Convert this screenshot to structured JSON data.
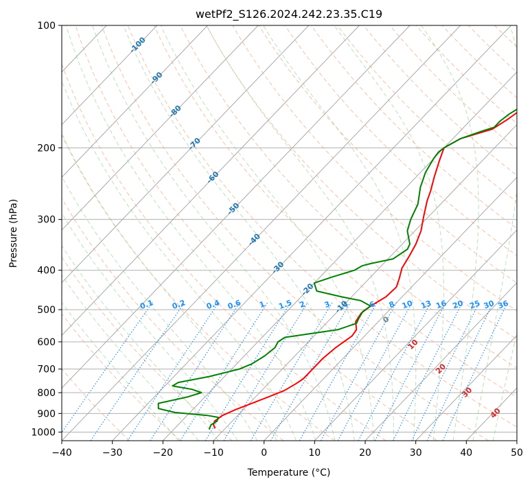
{
  "chart_data": {
    "type": "line",
    "title": "wetPf2_S126.2024.242.23.35.C19",
    "xlabel": "Temperature (°C)",
    "ylabel": "Pressure (hPa)",
    "xlim": [
      -40,
      50
    ],
    "ylim": [
      1050,
      100
    ],
    "y_scale": "log",
    "x_ticks": [
      -40,
      -30,
      -20,
      -10,
      0,
      10,
      20,
      30,
      40,
      50
    ],
    "y_ticks": [
      100,
      200,
      300,
      400,
      500,
      600,
      700,
      800,
      900,
      1000
    ],
    "grid": true,
    "isotherm_labels": [
      "-100",
      "-90",
      "-80",
      "-70",
      "-60",
      "-50",
      "-40",
      "-30",
      "-20",
      "-10"
    ],
    "mixing_ratio_labels": [
      "0.1",
      "0.2",
      "0.4",
      "0.6",
      "1",
      "1.5",
      "2",
      "3",
      "4",
      "6",
      "8",
      "10",
      "13",
      "16",
      "20",
      "25",
      "30",
      "36"
    ],
    "moist_adiabat_labels": [
      "0",
      "10",
      "20",
      "30",
      "40"
    ],
    "colors": {
      "temperature": "#ff0000",
      "dewpoint": "#008000",
      "isotherm_label": "#1f77b4",
      "mixing_ratio": "#1e90ff",
      "moist_label": "#d62728",
      "zero_label": "#808080"
    },
    "series": [
      {
        "color": "#ff0000",
        "points": [
          [
            -12.0,
            980
          ],
          [
            -13.0,
            960
          ],
          [
            -13.5,
            940
          ],
          [
            -13.0,
            910
          ],
          [
            -11.5,
            880
          ],
          [
            -9.5,
            850
          ],
          [
            -7.5,
            820
          ],
          [
            -5.5,
            790
          ],
          [
            -4.5,
            760
          ],
          [
            -4.0,
            740
          ],
          [
            -4.0,
            700
          ],
          [
            -4.0,
            660
          ],
          [
            -3.5,
            620
          ],
          [
            -2.5,
            580
          ],
          [
            -2.8,
            560
          ],
          [
            -4.5,
            535
          ],
          [
            -5.0,
            510
          ],
          [
            -4.5,
            490
          ],
          [
            -3.2,
            465
          ],
          [
            -3.0,
            440
          ],
          [
            -4.0,
            420
          ],
          [
            -5.5,
            395
          ],
          [
            -6.3,
            370
          ],
          [
            -7.3,
            345
          ],
          [
            -8.8,
            320
          ],
          [
            -11.0,
            295
          ],
          [
            -13.3,
            270
          ],
          [
            -14.5,
            255
          ],
          [
            -16.5,
            235
          ],
          [
            -18.5,
            215
          ],
          [
            -20.0,
            200
          ],
          [
            -18.5,
            190
          ],
          [
            -14.0,
            180
          ],
          [
            -12.8,
            170
          ],
          [
            -11.5,
            155
          ],
          [
            -10.5,
            140
          ],
          [
            -8.8,
            125
          ],
          [
            -7.2,
            112
          ],
          [
            -5.6,
            100
          ]
        ]
      },
      {
        "color": "#008000",
        "points": [
          [
            -13.0,
            985
          ],
          [
            -13.5,
            960
          ],
          [
            -13.0,
            940
          ],
          [
            -13.5,
            920
          ],
          [
            -16.0,
            910
          ],
          [
            -23.0,
            895
          ],
          [
            -27.0,
            875
          ],
          [
            -28.0,
            850
          ],
          [
            -23.5,
            820
          ],
          [
            -21.5,
            800
          ],
          [
            -24.0,
            785
          ],
          [
            -28.5,
            770
          ],
          [
            -28.0,
            755
          ],
          [
            -23.0,
            730
          ],
          [
            -18.5,
            700
          ],
          [
            -17.0,
            680
          ],
          [
            -16.0,
            650
          ],
          [
            -15.5,
            620
          ],
          [
            -16.0,
            600
          ],
          [
            -15.5,
            585
          ],
          [
            -12.0,
            575
          ],
          [
            -6.5,
            560
          ],
          [
            -4.0,
            540
          ],
          [
            -4.5,
            525
          ],
          [
            -5.0,
            505
          ],
          [
            -4.5,
            490
          ],
          [
            -7.5,
            475
          ],
          [
            -12.0,
            465
          ],
          [
            -18.0,
            450
          ],
          [
            -20.0,
            430
          ],
          [
            -17.5,
            415
          ],
          [
            -14.5,
            400
          ],
          [
            -13.8,
            390
          ],
          [
            -12.5,
            385
          ],
          [
            -9.0,
            375
          ],
          [
            -8.0,
            355
          ],
          [
            -8.5,
            345
          ],
          [
            -11.5,
            320
          ],
          [
            -13.0,
            300
          ],
          [
            -14.5,
            275
          ],
          [
            -17.2,
            250
          ],
          [
            -19.0,
            230
          ],
          [
            -20.0,
            213
          ],
          [
            -20.3,
            205
          ],
          [
            -20.0,
            200
          ],
          [
            -18.5,
            190
          ],
          [
            -15.7,
            182
          ],
          [
            -14.0,
            178
          ],
          [
            -14.0,
            172
          ],
          [
            -13.5,
            165
          ],
          [
            -12.0,
            155
          ],
          [
            -10.5,
            145
          ],
          [
            -9.0,
            135
          ],
          [
            -8.0,
            125
          ],
          [
            -6.8,
            115
          ],
          [
            -5.5,
            108
          ],
          [
            -3.3,
            100
          ]
        ]
      }
    ]
  }
}
